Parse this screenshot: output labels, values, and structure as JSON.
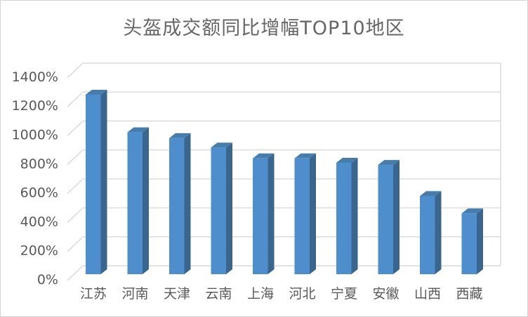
{
  "window": {
    "background": "#ffffff",
    "border_color": "#d3d3d3"
  },
  "chart_data": {
    "type": "bar",
    "variant": "3d-clustered-column",
    "title": "头盔成交额同比增幅TOP10地区",
    "categories": [
      "江苏",
      "河南",
      "天津",
      "云南",
      "上海",
      "河北",
      "宁夏",
      "安徽",
      "山西",
      "西藏"
    ],
    "values": [
      1240,
      980,
      940,
      875,
      800,
      800,
      770,
      755,
      540,
      420
    ],
    "unit": "%",
    "xlabel": "",
    "ylabel": "",
    "ylim": [
      0,
      1400
    ],
    "y_tick_step": 200,
    "y_ticks": [
      "0%",
      "200%",
      "400%",
      "600%",
      "800%",
      "1000%",
      "1200%",
      "1400%"
    ],
    "grid": true,
    "legend": false,
    "data_labels": false,
    "colors": {
      "bar_front": "#4E8ECD",
      "bar_top": "#467DAC",
      "bar_side": "#3A658D",
      "gridline": "#D9D9D9",
      "axis_text": "#595959",
      "title_text": "#666666"
    }
  }
}
